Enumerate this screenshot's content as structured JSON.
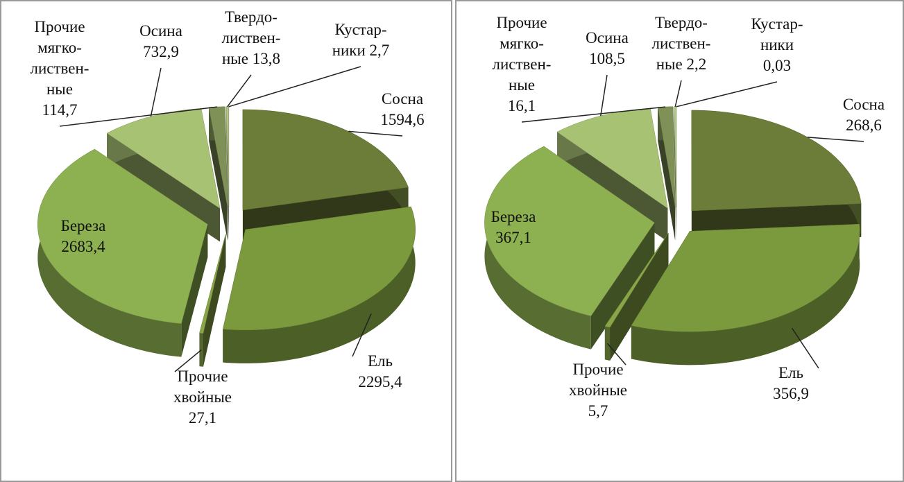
{
  "chart_data": [
    {
      "type": "pie",
      "categories": [
        [
          "Сосна"
        ],
        [
          "Ель"
        ],
        [
          "Прочие",
          "хвойные"
        ],
        [
          "Береза"
        ],
        [
          "Осина"
        ],
        [
          "Прочие",
          "мягко-",
          "листвен-",
          "ные"
        ],
        [
          "Твердо-",
          "листвен-",
          "ные"
        ],
        [
          "Кустар-",
          "ники"
        ]
      ],
      "values": [
        1594.6,
        2295.4,
        27.1,
        2683.4,
        732.9,
        114.7,
        13.8,
        2.7
      ],
      "value_labels": [
        "1594,6",
        "2295,4",
        "27,1",
        "2683,4",
        "732,9",
        "114,7",
        "13,8",
        "2,7"
      ],
      "colors": [
        "#6b7d38",
        "#7b9a3e",
        "#88a548",
        "#8db050",
        "#a8c274",
        "#7f9157",
        "#b3c787",
        "#c6d69e"
      ]
    },
    {
      "type": "pie",
      "categories": [
        [
          "Сосна"
        ],
        [
          "Ель"
        ],
        [
          "Прочие",
          "хвойные"
        ],
        [
          "Береза"
        ],
        [
          "Осина"
        ],
        [
          "Прочие",
          "мягко-",
          "листвен-",
          "ные"
        ],
        [
          "Твердо-",
          "листвен-",
          "ные"
        ],
        [
          "Кустар-",
          "ники"
        ]
      ],
      "values": [
        268.6,
        356.9,
        5.7,
        367.1,
        108.5,
        16.1,
        2.2,
        0.03
      ],
      "value_labels": [
        "268,6",
        "356,9",
        "5,7",
        "367,1",
        "108,5",
        "16,1",
        "2,2",
        "0,03"
      ],
      "colors": [
        "#6b7d38",
        "#7b9a3e",
        "#88a548",
        "#8db050",
        "#a8c274",
        "#7f9157",
        "#b3c787",
        "#c6d69e"
      ]
    }
  ]
}
